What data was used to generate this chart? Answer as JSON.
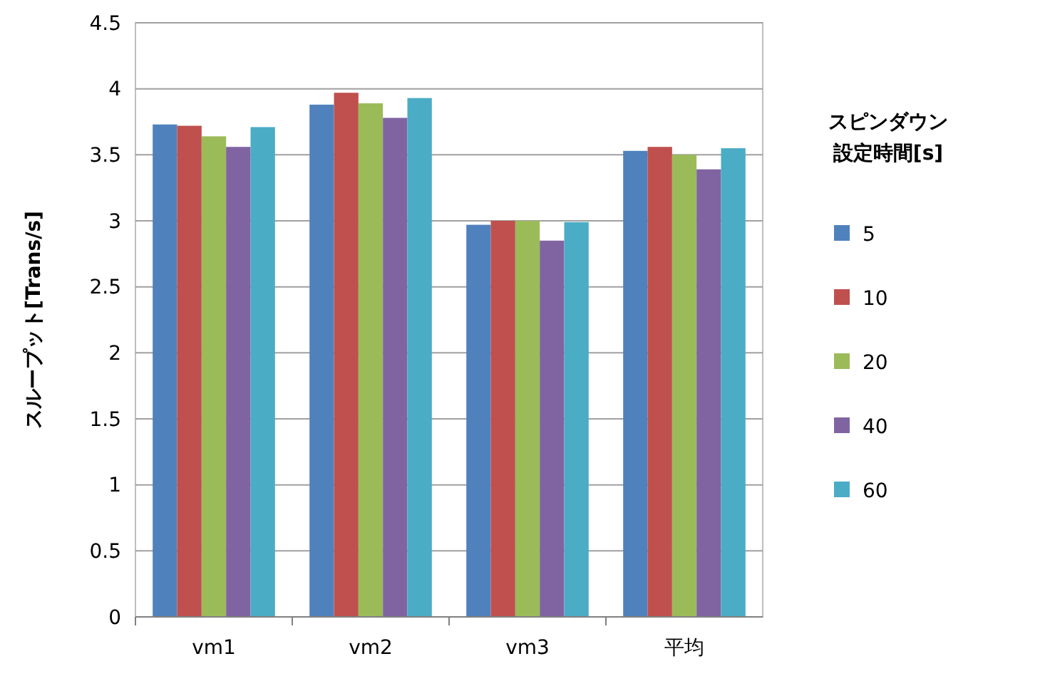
{
  "chart_data": {
    "type": "bar",
    "ylabel": "スループット[Trans/s]",
    "legend_title": "スピンダウン設定時間[s]",
    "categories": [
      "vm1",
      "vm2",
      "vm3",
      "平均"
    ],
    "series": [
      {
        "name": "5",
        "color": "#4f81bd",
        "values": [
          3.73,
          3.88,
          2.97,
          3.53
        ]
      },
      {
        "name": "10",
        "color": "#c0504d",
        "values": [
          3.72,
          3.97,
          3.0,
          3.56
        ]
      },
      {
        "name": "20",
        "color": "#9bbb59",
        "values": [
          3.64,
          3.89,
          3.0,
          3.5
        ]
      },
      {
        "name": "40",
        "color": "#8064a2",
        "values": [
          3.56,
          3.78,
          2.85,
          3.39
        ]
      },
      {
        "name": "60",
        "color": "#4bacc6",
        "values": [
          3.71,
          3.93,
          2.99,
          3.55
        ]
      }
    ],
    "ylim": [
      0,
      4.5
    ],
    "yticks": [
      0,
      0.5,
      1,
      1.5,
      2,
      2.5,
      3,
      3.5,
      4,
      4.5
    ],
    "grid": "y",
    "legend": "right"
  }
}
